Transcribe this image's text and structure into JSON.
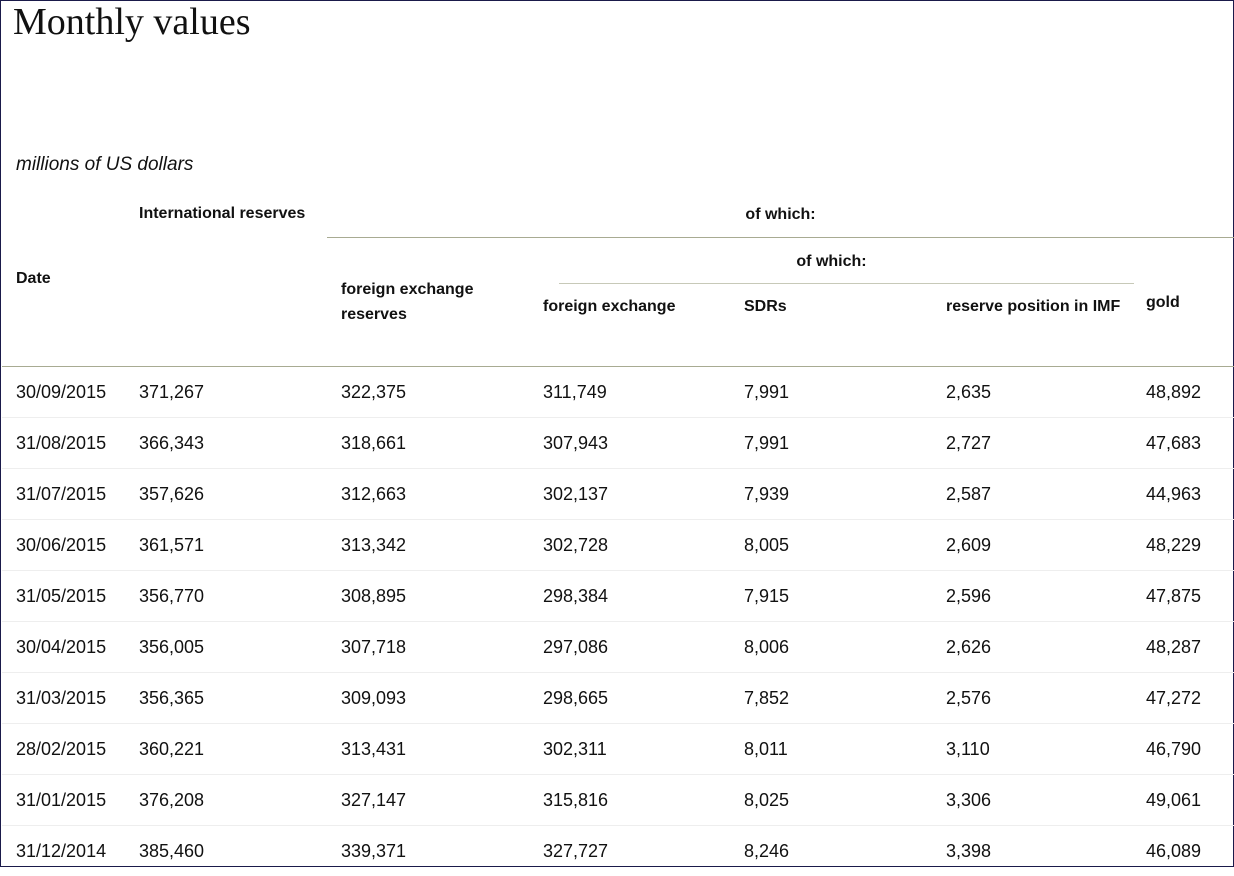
{
  "page": {
    "title": "Monthly values",
    "units": "millions of US dollars"
  },
  "table": {
    "headers": {
      "date": "Date",
      "international_reserves": "International reserves",
      "of_which_level1": "of which:",
      "foreign_exchange_reserves": "foreign exchange reserves",
      "of_which_level2": "of which:",
      "foreign_exchange": "foreign exchange",
      "sdrs": "SDRs",
      "reserve_position_imf": "reserve position in IMF",
      "gold": "gold"
    },
    "rows": [
      {
        "date": "30/09/2015",
        "international_reserves": "371,267",
        "foreign_exchange_reserves": "322,375",
        "foreign_exchange": "311,749",
        "sdrs": "7,991",
        "reserve_position_imf": "2,635",
        "gold": "48,892"
      },
      {
        "date": "31/08/2015",
        "international_reserves": "366,343",
        "foreign_exchange_reserves": "318,661",
        "foreign_exchange": "307,943",
        "sdrs": "7,991",
        "reserve_position_imf": "2,727",
        "gold": "47,683"
      },
      {
        "date": "31/07/2015",
        "international_reserves": "357,626",
        "foreign_exchange_reserves": "312,663",
        "foreign_exchange": "302,137",
        "sdrs": "7,939",
        "reserve_position_imf": "2,587",
        "gold": "44,963"
      },
      {
        "date": "30/06/2015",
        "international_reserves": "361,571",
        "foreign_exchange_reserves": "313,342",
        "foreign_exchange": "302,728",
        "sdrs": "8,005",
        "reserve_position_imf": "2,609",
        "gold": "48,229"
      },
      {
        "date": "31/05/2015",
        "international_reserves": "356,770",
        "foreign_exchange_reserves": "308,895",
        "foreign_exchange": "298,384",
        "sdrs": "7,915",
        "reserve_position_imf": "2,596",
        "gold": "47,875"
      },
      {
        "date": "30/04/2015",
        "international_reserves": "356,005",
        "foreign_exchange_reserves": "307,718",
        "foreign_exchange": "297,086",
        "sdrs": "8,006",
        "reserve_position_imf": "2,626",
        "gold": "48,287"
      },
      {
        "date": "31/03/2015",
        "international_reserves": "356,365",
        "foreign_exchange_reserves": "309,093",
        "foreign_exchange": "298,665",
        "sdrs": "7,852",
        "reserve_position_imf": "2,576",
        "gold": "47,272"
      },
      {
        "date": "28/02/2015",
        "international_reserves": "360,221",
        "foreign_exchange_reserves": "313,431",
        "foreign_exchange": "302,311",
        "sdrs": "8,011",
        "reserve_position_imf": "3,110",
        "gold": "46,790"
      },
      {
        "date": "31/01/2015",
        "international_reserves": "376,208",
        "foreign_exchange_reserves": "327,147",
        "foreign_exchange": "315,816",
        "sdrs": "8,025",
        "reserve_position_imf": "3,306",
        "gold": "49,061"
      },
      {
        "date": "31/12/2014",
        "international_reserves": "385,460",
        "foreign_exchange_reserves": "339,371",
        "foreign_exchange": "327,727",
        "sdrs": "8,246",
        "reserve_position_imf": "3,398",
        "gold": "46,089"
      }
    ]
  },
  "colors": {
    "header_rule": "#a8ab92",
    "row_divider": "#eeeeee",
    "frame_border": "#1a1a4a"
  }
}
